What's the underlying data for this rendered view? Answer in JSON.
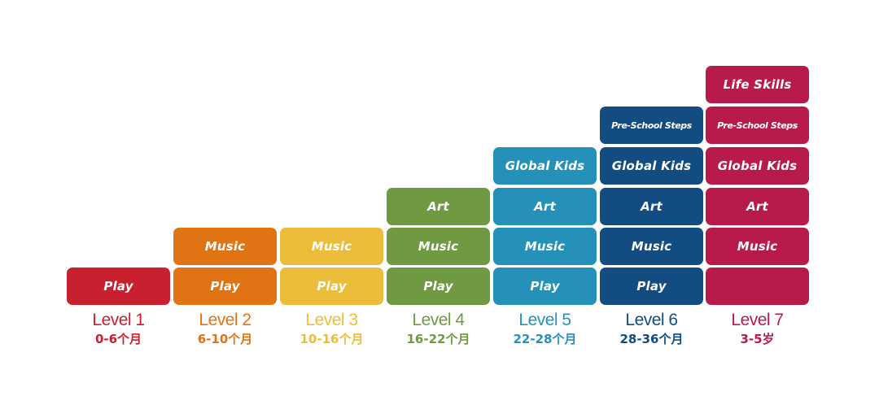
{
  "levels": [
    {
      "name": "Level 1",
      "age": "0-6个月",
      "color": "#c8202f",
      "cells": [
        "Play"
      ]
    },
    {
      "name": "Level 2",
      "age": "6-10个月",
      "color": "#e07415",
      "cells": [
        "Play",
        "Music"
      ]
    },
    {
      "name": "Level 3",
      "age": "10-16个月",
      "color": "#ebbd3b",
      "cells": [
        "Play",
        "Music"
      ]
    },
    {
      "name": "Level 4",
      "age": "16-22个月",
      "color": "#6f9a41",
      "cells": [
        "Play",
        "Music",
        "Art"
      ]
    },
    {
      "name": "Level 5",
      "age": "22-28个月",
      "color": "#2691b8",
      "cells": [
        "Play",
        "Music",
        "Art",
        "Global Kids"
      ]
    },
    {
      "name": "Level 6",
      "age": "28-36个月",
      "color": "#134c80",
      "cells": [
        "Play",
        "Music",
        "Art",
        "Global Kids",
        "Pre-School Steps"
      ]
    },
    {
      "name": "Level 7",
      "age": "3-5岁",
      "color": "#b81a4a",
      "cells": [
        "",
        "Music",
        "Art",
        "Global Kids",
        "Pre-School Steps",
        "Life Skills"
      ]
    }
  ]
}
